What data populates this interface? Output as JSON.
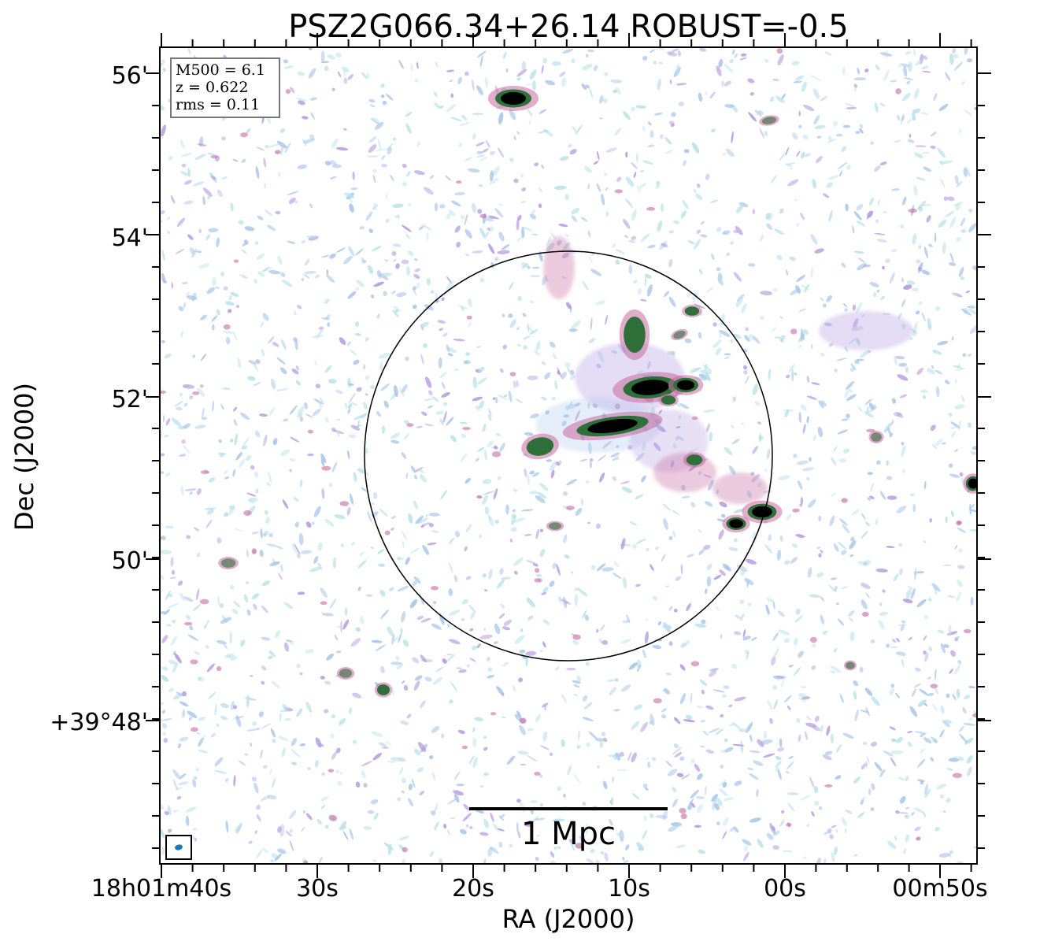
{
  "title": "PSZ2G066.34+26.14 ROBUST=-0.5",
  "xlabel": "RA (J2000)",
  "ylabel": "Dec (J2000)",
  "info_box": {
    "lines": [
      "M500 = 6.1",
      "z = 0.622",
      "rms = 0.11"
    ]
  },
  "scalebar_label": "1 Mpc",
  "x_ticks": [
    "18h01m40s",
    "30s",
    "20s",
    "10s",
    "00s",
    "00m50s"
  ],
  "y_ticks": [
    "56'",
    "54'",
    "52'",
    "50'",
    "+39°48'"
  ],
  "colors": {
    "noise_blue": "#a9c6ea",
    "noise_cyan": "#b9e3ea",
    "noise_purple": "#b39ae0",
    "noise_pink": "#c76aa0",
    "source_green": "#2f6f3a",
    "source_core": "#000000",
    "beam": "#1f77b4"
  }
}
